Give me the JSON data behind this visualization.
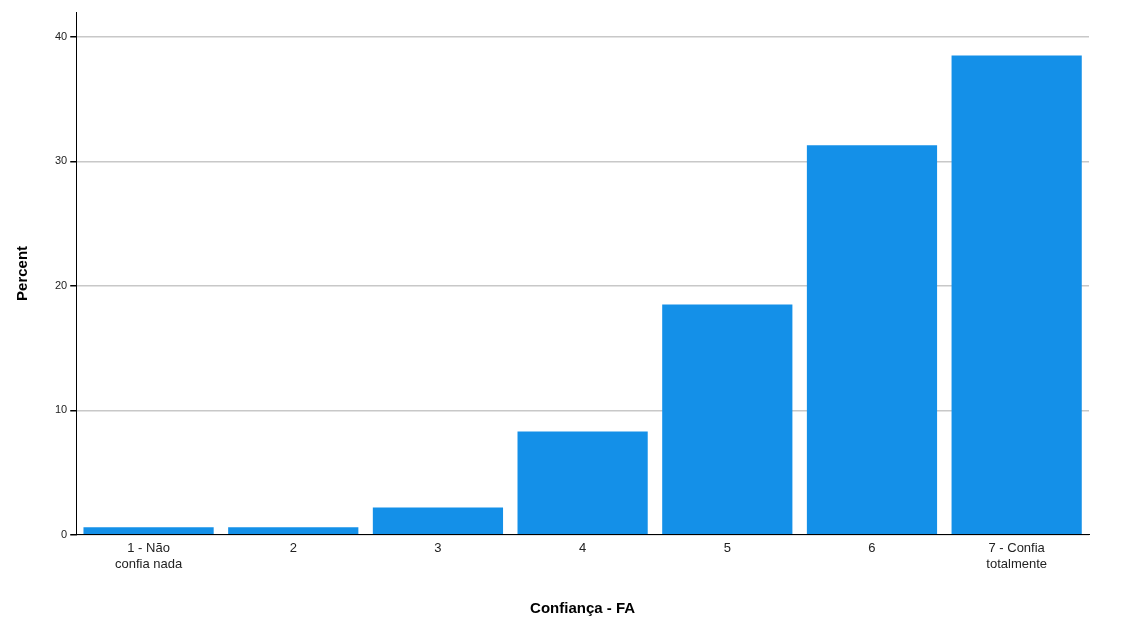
{
  "chart_data": {
    "type": "bar",
    "xlabel": "Confiança - FA",
    "ylabel": "Percent",
    "categories": [
      "1 - Não confia nada",
      "2",
      "3",
      "4",
      "5",
      "6",
      "7 - Confia totalmente"
    ],
    "values": [
      0.6,
      0.6,
      2.2,
      8.3,
      18.5,
      31.3,
      38.5
    ],
    "color": "#1490e8",
    "ylim": [
      0,
      42
    ],
    "yticks": [
      0,
      10,
      20,
      30,
      40
    ],
    "grid": "y",
    "legend": false
  }
}
